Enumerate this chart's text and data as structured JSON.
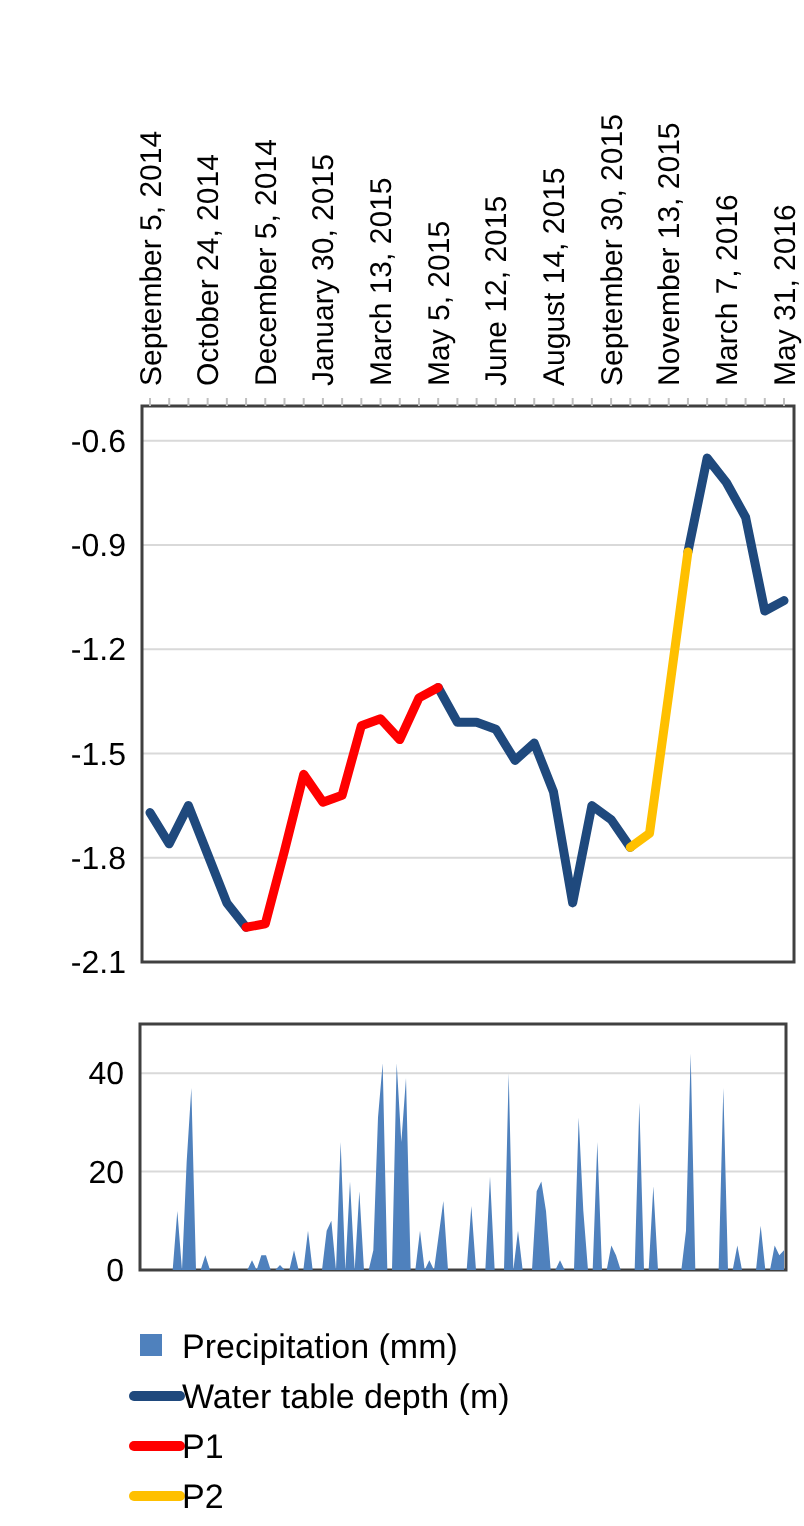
{
  "chart_data": [
    {
      "type": "line",
      "categories": [
        "September 5, 2014",
        null,
        null,
        "October 24, 2014",
        null,
        null,
        "December 5, 2014",
        null,
        null,
        "January 30, 2015",
        null,
        null,
        "March 13, 2015",
        null,
        null,
        "May 5, 2015",
        null,
        null,
        "June 12, 2015",
        null,
        null,
        "August 14, 2015",
        null,
        null,
        "September 30, 2015",
        null,
        null,
        "November 13, 2015",
        null,
        null,
        "March 7, 2016",
        null,
        null,
        "May 31, 2016"
      ],
      "series": [
        {
          "name": "Water table depth (m)",
          "color": "#1f497d",
          "values": [
            -1.67,
            -1.76,
            -1.65,
            -1.79,
            -1.93,
            -2.0,
            null,
            null,
            null,
            null,
            null,
            null,
            null,
            null,
            null,
            -1.31,
            -1.41,
            -1.41,
            -1.43,
            -1.52,
            -1.47,
            -1.61,
            -1.93,
            -1.65,
            -1.69,
            -1.77,
            null,
            null,
            -0.92,
            -0.65,
            -0.72,
            -0.82,
            -1.09,
            -1.06
          ]
        },
        {
          "name": "P1",
          "color": "#ff0000",
          "values": [
            null,
            null,
            null,
            null,
            null,
            -2.0,
            -1.99,
            -1.78,
            -1.56,
            -1.64,
            -1.62,
            -1.42,
            -1.4,
            -1.46,
            -1.34,
            -1.31,
            null,
            null,
            null,
            null,
            null,
            null,
            null,
            null,
            null,
            null,
            null,
            null,
            null,
            null,
            null,
            null,
            null,
            null
          ]
        },
        {
          "name": "P2",
          "color": "#ffc000",
          "values": [
            null,
            null,
            null,
            null,
            null,
            null,
            null,
            null,
            null,
            null,
            null,
            null,
            null,
            null,
            null,
            null,
            null,
            null,
            null,
            null,
            null,
            null,
            null,
            null,
            null,
            -1.77,
            -1.73,
            -1.33,
            -0.92,
            null,
            null,
            null,
            null,
            null
          ]
        }
      ],
      "ylim": [
        -2.1,
        -0.5
      ],
      "yticks": [
        -2.1,
        -1.8,
        -1.5,
        -1.2,
        -0.9,
        -0.6
      ],
      "grid": "y",
      "legend": "bottom",
      "line_style": "solid"
    },
    {
      "type": "area",
      "categories": [
        null,
        null,
        null,
        null,
        null,
        null,
        null,
        null,
        null,
        null,
        null,
        null,
        null,
        null,
        null,
        null,
        null,
        null,
        null,
        null,
        null,
        null,
        null,
        null,
        null,
        null,
        null,
        null,
        null,
        null,
        null,
        null,
        null,
        null,
        null,
        null,
        null,
        null,
        null,
        null,
        null,
        null,
        null,
        null,
        null,
        null,
        null,
        null,
        null,
        null,
        null,
        null,
        null,
        null,
        null,
        null,
        null,
        null,
        null,
        null,
        null,
        null,
        null,
        null,
        null,
        null,
        null,
        null,
        null,
        null,
        null,
        null,
        null,
        null,
        null,
        null,
        null,
        null,
        null,
        null,
        null,
        null,
        null,
        null,
        null,
        null,
        null,
        null,
        null,
        null,
        null,
        null,
        null,
        null,
        null,
        null,
        null,
        null,
        null,
        null,
        null,
        null,
        null,
        null,
        null,
        null,
        null,
        null,
        null,
        null,
        null,
        null,
        null,
        null,
        null,
        null,
        null,
        null,
        null,
        null,
        null,
        null,
        null,
        null,
        null,
        null,
        null,
        null,
        null,
        null,
        null,
        null,
        null,
        null,
        null,
        null,
        null,
        null,
        null
      ],
      "series": [
        {
          "name": "Precipitation (mm)",
          "color": "#4f81bd",
          "values": [
            0,
            0,
            0,
            0,
            0,
            0,
            0,
            0,
            12,
            0,
            22,
            37,
            0,
            0,
            3,
            0,
            0,
            0,
            0,
            0,
            0,
            0,
            0,
            0,
            2,
            0,
            3,
            3,
            0,
            0,
            1,
            0,
            0,
            4,
            0,
            0,
            8,
            0,
            0,
            0,
            8,
            10,
            0,
            26,
            0,
            18,
            0,
            16,
            0,
            0,
            4,
            31,
            42,
            0,
            0,
            42,
            26,
            39,
            0,
            0,
            8,
            0,
            2,
            0,
            7,
            14,
            0,
            0,
            0,
            0,
            0,
            13,
            0,
            0,
            0,
            19,
            0,
            0,
            0,
            40,
            0,
            8,
            0,
            0,
            0,
            16,
            18,
            12,
            0,
            0,
            2,
            0,
            0,
            0,
            31,
            12,
            0,
            0,
            26,
            0,
            0,
            5,
            3,
            0,
            0,
            0,
            0,
            34,
            0,
            0,
            17,
            0,
            0,
            0,
            0,
            0,
            0,
            8,
            44,
            0,
            0,
            0,
            0,
            0,
            0,
            37,
            0,
            0,
            5,
            0,
            0,
            0,
            0,
            9,
            0,
            0,
            5,
            3,
            4
          ]
        }
      ],
      "ylim": [
        0,
        50
      ],
      "yticks": [
        0,
        20,
        40
      ],
      "grid": "y",
      "legend": "bottom",
      "tick_labels": "y"
    }
  ]
}
